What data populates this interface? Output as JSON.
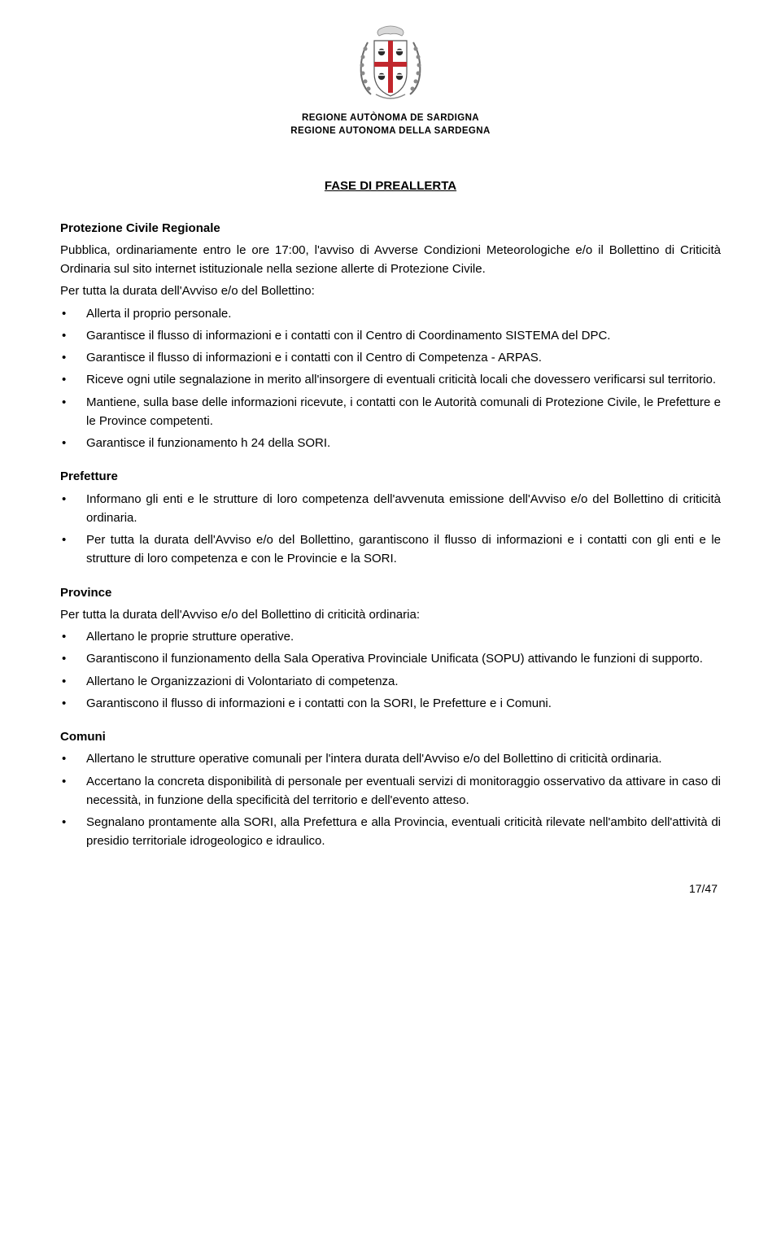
{
  "header": {
    "line1": "REGIONE AUTÒNOMA DE SARDIGNA",
    "line2": "REGIONE AUTONOMA DELLA SARDEGNA"
  },
  "title": "FASE DI PREALLERTA",
  "sections": [
    {
      "heading": "Protezione Civile Regionale",
      "intro": "Pubblica, ordinariamente entro le ore 17:00, l'avviso di Avverse Condizioni Meteorologiche e/o il Bollettino di Criticità Ordinaria sul sito internet istituzionale nella sezione allerte di Protezione Civile.",
      "intro2": "Per tutta la durata dell'Avviso e/o del Bollettino:",
      "items": [
        "Allerta il proprio personale.",
        "Garantisce  il flusso di informazioni e i contatti con il Centro di Coordinamento SISTEMA del DPC.",
        "Garantisce il flusso di informazioni e i contatti con il Centro di Competenza - ARPAS.",
        "Riceve ogni utile segnalazione in merito all'insorgere di eventuali criticità locali che dovessero verificarsi sul territorio.",
        "Mantiene, sulla base delle informazioni ricevute, i contatti con le Autorità comunali di Protezione Civile, le Prefetture e le Province competenti.",
        "Garantisce  il funzionamento h 24 della SORI."
      ]
    },
    {
      "heading": "Prefetture",
      "items": [
        "Informano gli enti e le strutture di loro competenza dell'avvenuta emissione dell'Avviso e/o del Bollettino di criticità ordinaria.",
        "Per tutta la durata dell'Avviso e/o del Bollettino, garantiscono il flusso di informazioni e i contatti con gli enti e le strutture di loro competenza e con le Provincie e la SORI."
      ]
    },
    {
      "heading": "Province",
      "intro": "Per tutta la  durata dell'Avviso e/o del Bollettino di criticità ordinaria:",
      "items": [
        "Allertano le proprie strutture operative.",
        "Garantiscono  il funzionamento della Sala Operativa Provinciale Unificata (SOPU) attivando le funzioni di supporto.",
        "Allertano le Organizzazioni di Volontariato di competenza.",
        "Garantiscono il flusso di informazioni e i contatti con la SORI, le Prefetture e i Comuni."
      ]
    },
    {
      "heading": "Comuni",
      "items": [
        "Allertano le strutture operative comunali per l'intera durata dell'Avviso e/o del Bollettino di criticità ordinaria.",
        "Accertano la concreta disponibilità di personale per eventuali servizi di monitoraggio osservativo da attivare in caso di necessità, in funzione della specificità del territorio e dell'evento atteso.",
        "Segnalano prontamente alla SORI, alla Prefettura e alla Provincia, eventuali criticità rilevate nell'ambito dell'attività di presidio territoriale idrogeologico e idraulico."
      ]
    }
  ],
  "page_number": "17/47",
  "colors": {
    "text": "#000000",
    "background": "#ffffff",
    "crest_red": "#c1272d",
    "crest_border": "#7a7a7a"
  }
}
